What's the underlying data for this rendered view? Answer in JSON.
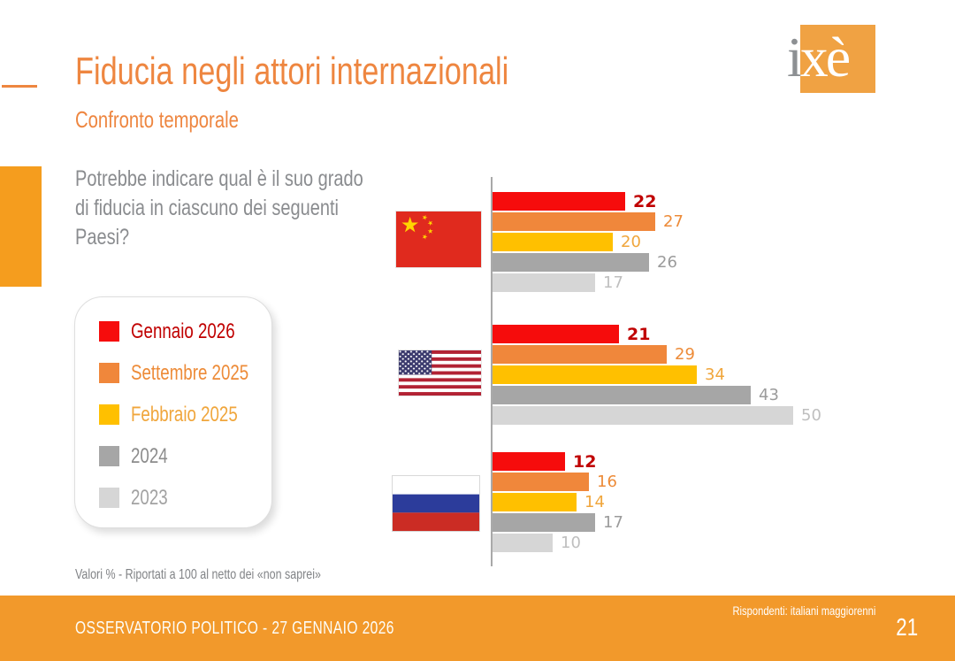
{
  "header": {
    "title": "Fiducia negli attori internazionali",
    "subtitle": "Confronto temporale",
    "logo_i": "i",
    "logo_xe": "xè"
  },
  "question": "Potrebbe indicare qual è il suo grado di fiducia in ciascuno dei seguenti Paesi?",
  "legend": {
    "items": [
      {
        "label": "Gennaio 2026",
        "swatch": "#f60c0c",
        "text_color": "#c00000"
      },
      {
        "label": "Settembre 2025",
        "swatch": "#f0873b",
        "text_color": "#ed8b38"
      },
      {
        "label": "Febbraio 2025",
        "swatch": "#ffc000",
        "text_color": "#f0a63c"
      },
      {
        "label": "2024",
        "swatch": "#a6a6a6",
        "text_color": "#8c8c8c"
      },
      {
        "label": "2023",
        "swatch": "#d6d6d6",
        "text_color": "#a2a2a2"
      }
    ]
  },
  "chart_data": {
    "type": "bar",
    "orientation": "horizontal",
    "value_unit": "percent",
    "xlim": [
      0,
      52
    ],
    "grid": false,
    "categories": [
      "Cina",
      "Stati Uniti",
      "Russia"
    ],
    "series": [
      {
        "name": "Gennaio 2026",
        "color": "#f60c0c",
        "label_color": "#c00000",
        "bold": true,
        "values": [
          22,
          21,
          12
        ]
      },
      {
        "name": "Settembre 2025",
        "color": "#f0873b",
        "label_color": "#ed8b38",
        "bold": false,
        "values": [
          27,
          29,
          16
        ]
      },
      {
        "name": "Febbraio 2025",
        "color": "#ffc000",
        "label_color": "#f0a63c",
        "bold": false,
        "values": [
          20,
          34,
          14
        ]
      },
      {
        "name": "2024",
        "color": "#a6a6a6",
        "label_color": "#9b9b9b",
        "bold": false,
        "values": [
          26,
          43,
          17
        ]
      },
      {
        "name": "2023",
        "color": "#d6d6d6",
        "label_color": "#bfbfbf",
        "bold": false,
        "values": [
          17,
          50,
          10
        ]
      }
    ]
  },
  "footnote": "Valori % - Riportati a 100 al netto dei «non saprei»",
  "footer": {
    "title": "OSSERVATORIO POLITICO - 27 GENNAIO 2026",
    "respondents": "Rispondenti: italiani maggiorenni",
    "page_number": "21"
  }
}
